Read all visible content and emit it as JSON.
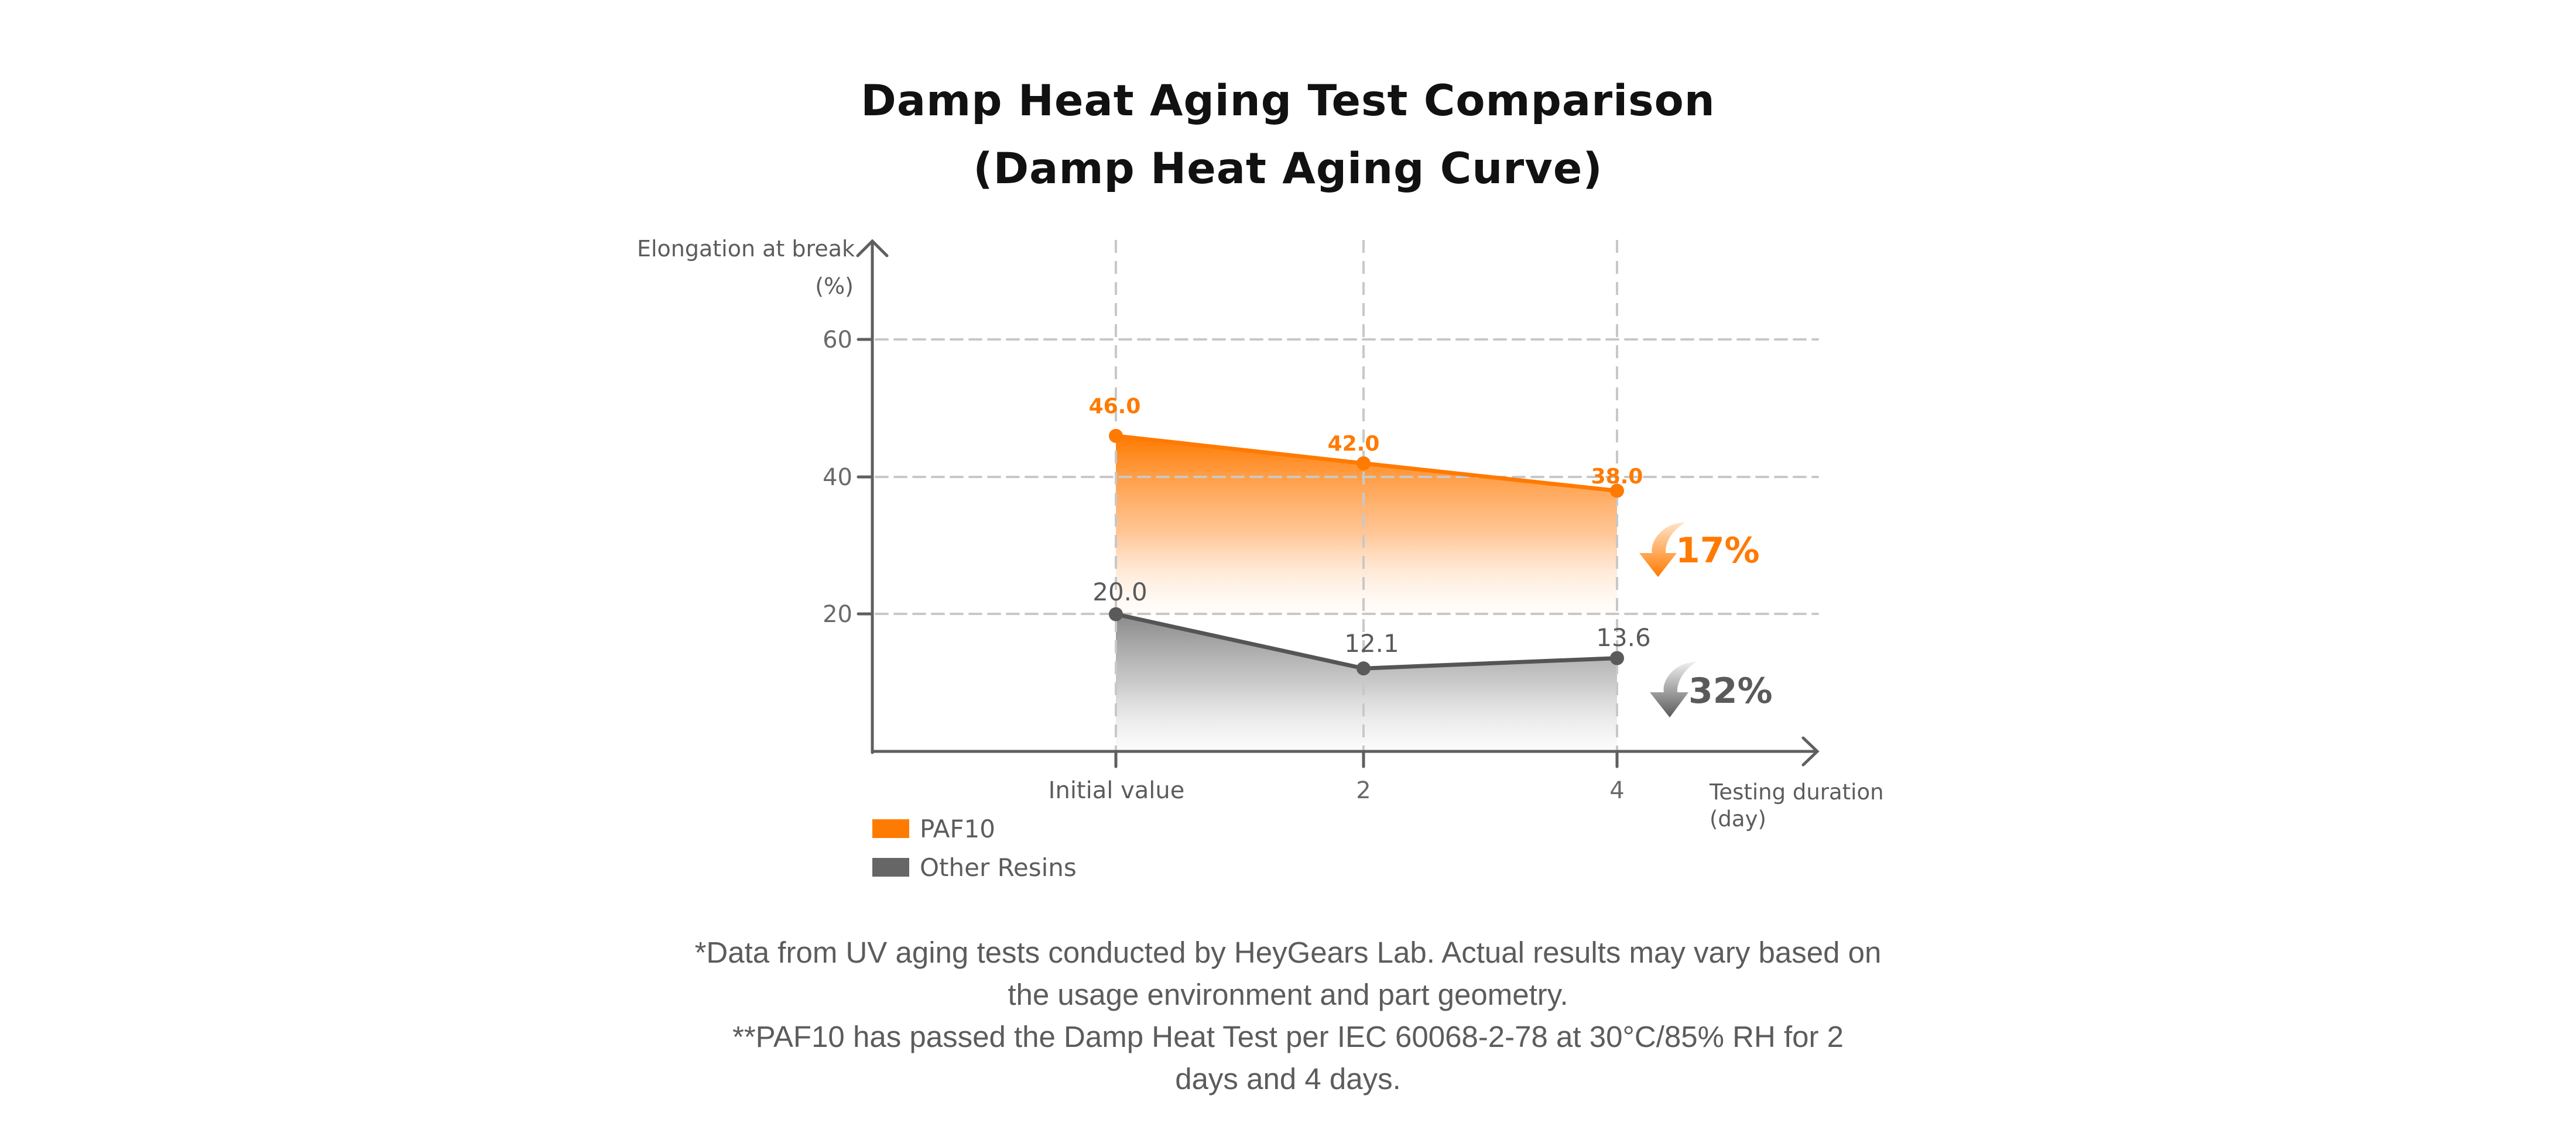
{
  "title": {
    "line1": "Damp Heat Aging Test Comparison",
    "line2": "(Damp Heat Aging Curve)"
  },
  "colors": {
    "paf10": "#ff7a00",
    "other_resins": "#5a5a5a",
    "axis": "#5f5f5f",
    "grid": "#c8c8c8",
    "text": "#5c5c5c"
  },
  "chart_data": {
    "type": "area",
    "title": "Damp Heat Aging Test Comparison (Damp Heat Aging Curve)",
    "xlabel": "Testing duration (day)",
    "ylabel": "Elongation at break (%)",
    "categories": [
      "Initial value",
      "2",
      "4"
    ],
    "yticks": [
      20,
      40,
      60
    ],
    "ylim": [
      0,
      65
    ],
    "grid": true,
    "legend_position": "bottom-left",
    "series": [
      {
        "name": "PAF10",
        "values": [
          46.0,
          42.0,
          38.0
        ],
        "labels": [
          "46.0",
          "42.0",
          "38.0"
        ],
        "color": "#ff7a00"
      },
      {
        "name": "Other Resins",
        "values": [
          20.0,
          12.1,
          13.6
        ],
        "labels": [
          "20.0",
          "12.1",
          "13.6"
        ],
        "color": "#5a5a5a"
      }
    ],
    "annotations": [
      {
        "series": "PAF10",
        "text": "17%",
        "icon": "down-arrow",
        "meaning": "decrease"
      },
      {
        "series": "Other Resins",
        "text": "32%",
        "icon": "down-arrow",
        "meaning": "decrease"
      }
    ]
  },
  "axes": {
    "y_label_line1": "Elongation at break",
    "y_label_line2": "(%)",
    "y_ticks": [
      "60",
      "40",
      "20"
    ],
    "x_ticks": [
      "Initial value",
      "2",
      "4"
    ],
    "x_label_line1": "Testing duration",
    "x_label_line2": "(day)"
  },
  "data_labels": {
    "paf10": [
      "46.0",
      "42.0",
      "38.0"
    ],
    "other": [
      "20.0",
      "12.1",
      "13.6"
    ]
  },
  "badges": {
    "paf10_drop": "17%",
    "other_drop": "32%"
  },
  "legend": {
    "items": [
      {
        "label": "PAF10",
        "color": "#ff7a00"
      },
      {
        "label": "Other Resins",
        "color": "#5a5a5a"
      }
    ]
  },
  "footnotes": {
    "note1": "*Data from UV aging tests conducted by HeyGears Lab. Actual results may vary based on the usage environment and part geometry.",
    "note2": "**PAF10 has passed the Damp Heat Test per IEC 60068-2-78 at 30°C/85% RH for 2 days and 4 days."
  }
}
